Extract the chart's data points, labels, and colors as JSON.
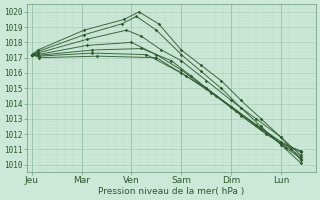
{
  "bg_color": "#cce8d8",
  "grid_major_color": "#aaccbb",
  "grid_minor_color": "#bbddc8",
  "line_color": "#2d5a2d",
  "marker_color": "#2d5a2d",
  "xlabel_text": "Pression niveau de la mer( hPa )",
  "x_labels": [
    "Jeu",
    "Mar",
    "Ven",
    "Sam",
    "Dim",
    "Lun"
  ],
  "x_ticks": [
    0,
    1,
    2,
    3,
    4,
    5
  ],
  "ylim": [
    1009.5,
    1020.5
  ],
  "yticks": [
    1010,
    1011,
    1012,
    1013,
    1014,
    1015,
    1016,
    1017,
    1018,
    1019,
    1020
  ],
  "xlim": [
    -0.1,
    5.7
  ],
  "lines": [
    {
      "points_x": [
        0.0,
        0.12,
        1.05,
        1.85,
        2.15,
        2.55,
        3.0,
        3.4,
        3.8,
        4.2,
        4.6,
        5.0,
        5.4
      ],
      "points_y": [
        1017.2,
        1017.5,
        1018.8,
        1019.5,
        1020.0,
        1019.2,
        1017.5,
        1016.5,
        1015.5,
        1014.2,
        1013.0,
        1011.8,
        1010.3
      ]
    },
    {
      "points_x": [
        0.0,
        0.12,
        1.05,
        1.8,
        2.1,
        2.5,
        3.0,
        3.4,
        3.8,
        4.2,
        4.6,
        5.0,
        5.4
      ],
      "points_y": [
        1017.2,
        1017.4,
        1018.5,
        1019.2,
        1019.7,
        1018.8,
        1017.2,
        1016.1,
        1015.0,
        1013.7,
        1012.5,
        1011.3,
        1010.1
      ]
    },
    {
      "points_x": [
        0.0,
        0.12,
        1.1,
        1.9,
        2.2,
        2.6,
        3.0,
        3.5,
        4.0,
        4.5,
        5.0,
        5.4
      ],
      "points_y": [
        1017.2,
        1017.3,
        1018.2,
        1018.8,
        1018.4,
        1017.5,
        1016.8,
        1015.5,
        1014.2,
        1013.0,
        1011.8,
        1010.6
      ]
    },
    {
      "points_x": [
        0.0,
        0.12,
        1.1,
        2.0,
        2.5,
        3.0,
        3.5,
        4.0,
        4.5,
        5.0,
        5.4
      ],
      "points_y": [
        1017.2,
        1017.2,
        1017.8,
        1018.0,
        1017.2,
        1016.2,
        1015.0,
        1013.8,
        1012.6,
        1011.5,
        1010.8
      ]
    },
    {
      "points_x": [
        0.0,
        0.12,
        1.2,
        2.2,
        2.8,
        3.2,
        3.7,
        4.2,
        4.7,
        5.2,
        5.4
      ],
      "points_y": [
        1017.2,
        1017.15,
        1017.5,
        1017.6,
        1016.8,
        1015.8,
        1014.5,
        1013.2,
        1012.0,
        1011.0,
        1010.5
      ]
    },
    {
      "points_x": [
        0.0,
        0.15,
        1.2,
        2.3,
        3.0,
        3.5,
        4.0,
        4.5,
        5.0,
        5.4
      ],
      "points_y": [
        1017.2,
        1017.1,
        1017.3,
        1017.2,
        1016.0,
        1015.0,
        1013.8,
        1012.6,
        1011.4,
        1010.9
      ]
    },
    {
      "points_x": [
        0.0,
        0.15,
        1.3,
        2.5,
        3.1,
        3.6,
        4.1,
        4.6,
        5.1,
        5.4
      ],
      "points_y": [
        1017.2,
        1017.0,
        1017.1,
        1017.0,
        1015.8,
        1014.7,
        1013.5,
        1012.3,
        1011.1,
        1010.4
      ]
    }
  ]
}
